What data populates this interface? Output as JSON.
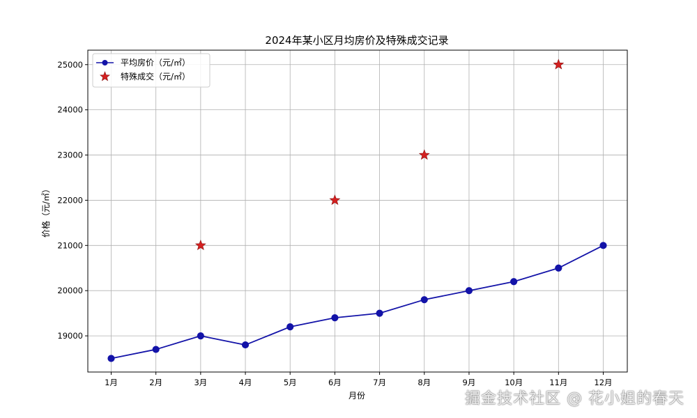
{
  "chart_data": {
    "type": "line",
    "title": "2024年某小区月均房价及特殊成交记录",
    "xlabel": "月份",
    "ylabel": "价格（元/㎡）",
    "categories": [
      "1月",
      "2月",
      "3月",
      "4月",
      "5月",
      "6月",
      "7月",
      "8月",
      "9月",
      "10月",
      "11月",
      "12月"
    ],
    "ylim": [
      18200,
      25320
    ],
    "yticks": [
      19000,
      20000,
      21000,
      22000,
      23000,
      24000,
      25000
    ],
    "grid": true,
    "legend_position": "top-left",
    "series": [
      {
        "name": "平均房价（元/㎡）",
        "type": "line",
        "marker": "circle",
        "color": "#1313a8",
        "x": [
          "1月",
          "2月",
          "3月",
          "4月",
          "5月",
          "6月",
          "7月",
          "8月",
          "9月",
          "10月",
          "11月",
          "12月"
        ],
        "values": [
          18500,
          18700,
          19000,
          18800,
          19200,
          19400,
          19500,
          19800,
          20000,
          20200,
          20500,
          21000
        ]
      },
      {
        "name": "特殊成交（元/㎡）",
        "type": "scatter",
        "marker": "star",
        "color": "#d42020",
        "x": [
          "3月",
          "6月",
          "8月",
          "11月"
        ],
        "values": [
          21000,
          22000,
          23000,
          25000
        ]
      }
    ]
  },
  "watermark": "掘金技术社区 @ 花小姐的春天"
}
